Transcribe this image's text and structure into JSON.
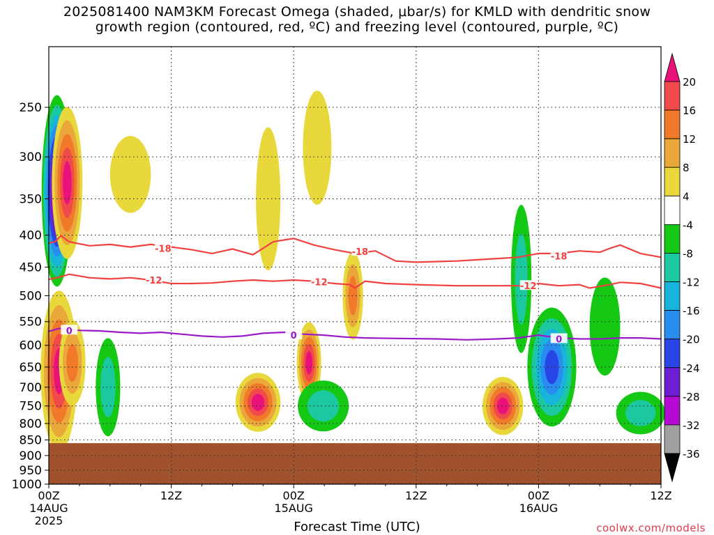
{
  "title_line1": "2025081400 NAM3KM Forecast Omega (shaded, μbar/s) for KMLD with dendritic snow",
  "title_line2": "growth region (contoured, red, ºC) and freezing level (contoured, purple, ºC)",
  "x_axis_title": "Forecast Time (UTC)",
  "credit": "coolwx.com/models",
  "chart_data": {
    "type": "heatmap",
    "y_axis": {
      "quantity": "pressure (hPa)",
      "scale": "log",
      "range": [
        200,
        1000
      ],
      "inverted": true,
      "ticks": [
        "250",
        "300",
        "350",
        "400",
        "450",
        "500",
        "550",
        "600",
        "650",
        "700",
        "750",
        "800",
        "850",
        "900",
        "950",
        "1000"
      ]
    },
    "x_axis": {
      "quantity": "forecast hour",
      "range": [
        0,
        60
      ],
      "ticks": [
        {
          "hour": 0,
          "label": "00Z",
          "sub1": "14AUG",
          "sub2": "2025"
        },
        {
          "hour": 12,
          "label": "12Z",
          "sub1": "",
          "sub2": ""
        },
        {
          "hour": 24,
          "label": "00Z",
          "sub1": "15AUG",
          "sub2": ""
        },
        {
          "hour": 36,
          "label": "12Z",
          "sub1": "",
          "sub2": ""
        },
        {
          "hour": 48,
          "label": "00Z",
          "sub1": "16AUG",
          "sub2": ""
        },
        {
          "hour": 60,
          "label": "12Z",
          "sub1": "",
          "sub2": ""
        }
      ]
    },
    "grid": true,
    "surface_fill": {
      "above_pressure": 860,
      "color": "#a0522d"
    },
    "colorbar": {
      "labels": [
        "20",
        "16",
        "12",
        "8",
        "4",
        "-4",
        "-8",
        "-12",
        "-16",
        "-20",
        "-24",
        "-28",
        "-32",
        "-36"
      ],
      "bins": [
        {
          "range": [
            20,
            24
          ],
          "color": "#e8127a"
        },
        {
          "range": [
            16,
            20
          ],
          "color": "#f04a4a"
        },
        {
          "range": [
            12,
            16
          ],
          "color": "#f07a2a"
        },
        {
          "range": [
            8,
            12
          ],
          "color": "#eaa83a"
        },
        {
          "range": [
            4,
            8
          ],
          "color": "#e8d83c"
        },
        {
          "range": [
            -4,
            4
          ],
          "color": "#ffffff"
        },
        {
          "range": [
            -8,
            -4
          ],
          "color": "#14c814"
        },
        {
          "range": [
            -12,
            -8
          ],
          "color": "#1cc8a0"
        },
        {
          "range": [
            -16,
            -12
          ],
          "color": "#18b4dc"
        },
        {
          "range": [
            -20,
            -16
          ],
          "color": "#288cf0"
        },
        {
          "range": [
            -24,
            -20
          ],
          "color": "#2846e6"
        },
        {
          "range": [
            -28,
            -24
          ],
          "color": "#6e1ed2"
        },
        {
          "range": [
            -32,
            -28
          ],
          "color": "#b40ad2"
        },
        {
          "range": [
            -36,
            -32
          ],
          "color": "#a0a0a0"
        },
        {
          "range": [
            -40,
            -36
          ],
          "color": "#000000"
        }
      ]
    },
    "contours": [
      {
        "label": "-18",
        "color": "#f04040",
        "label_hours": [
          [
            11.2,
            420
          ],
          [
            30.5,
            425
          ],
          [
            50,
            432
          ]
        ],
        "points": [
          [
            0,
            412
          ],
          [
            0.6,
            410
          ],
          [
            1.2,
            401
          ],
          [
            2,
            410
          ],
          [
            4,
            416
          ],
          [
            6,
            414
          ],
          [
            8,
            418
          ],
          [
            10,
            414
          ],
          [
            12,
            418
          ],
          [
            14,
            422
          ],
          [
            16,
            428
          ],
          [
            18,
            421
          ],
          [
            20,
            430
          ],
          [
            22,
            410
          ],
          [
            24,
            405
          ],
          [
            26,
            415
          ],
          [
            28,
            422
          ],
          [
            30,
            428
          ],
          [
            32,
            424
          ],
          [
            34,
            440
          ],
          [
            36,
            442
          ],
          [
            38,
            441
          ],
          [
            40,
            440
          ],
          [
            42,
            438
          ],
          [
            44,
            436
          ],
          [
            46,
            434
          ],
          [
            48,
            428
          ],
          [
            50,
            428
          ],
          [
            52,
            424
          ],
          [
            54,
            426
          ],
          [
            55,
            420
          ],
          [
            56,
            415
          ],
          [
            58,
            428
          ],
          [
            60,
            434
          ]
        ]
      },
      {
        "label": "-12",
        "color": "#f04040",
        "label_hours": [
          [
            10.3,
            472
          ],
          [
            26.5,
            475
          ],
          [
            47,
            482
          ]
        ],
        "points": [
          [
            0,
            471
          ],
          [
            1,
            467
          ],
          [
            2,
            462
          ],
          [
            4,
            468
          ],
          [
            6,
            470
          ],
          [
            8,
            468
          ],
          [
            10,
            472
          ],
          [
            12,
            478
          ],
          [
            14,
            478
          ],
          [
            16,
            477
          ],
          [
            18,
            474
          ],
          [
            20,
            472
          ],
          [
            22,
            474
          ],
          [
            24,
            472
          ],
          [
            26,
            474
          ],
          [
            28,
            478
          ],
          [
            29.5,
            480
          ],
          [
            30,
            486
          ],
          [
            31,
            474
          ],
          [
            33,
            478
          ],
          [
            36,
            480
          ],
          [
            40,
            482
          ],
          [
            44,
            482
          ],
          [
            46,
            482
          ],
          [
            48,
            478
          ],
          [
            50,
            482
          ],
          [
            52,
            480
          ],
          [
            53,
            486
          ],
          [
            55,
            480
          ],
          [
            56,
            476
          ],
          [
            58,
            478
          ],
          [
            60,
            486
          ]
        ]
      },
      {
        "label": "0",
        "color": "#9a19c8",
        "label_hours": [
          [
            2,
            568
          ],
          [
            24,
            578
          ],
          [
            50,
            586
          ]
        ],
        "points": [
          [
            0,
            570
          ],
          [
            1,
            564
          ],
          [
            3,
            568
          ],
          [
            5,
            569
          ],
          [
            7,
            572
          ],
          [
            9,
            574
          ],
          [
            11,
            572
          ],
          [
            13,
            576
          ],
          [
            15,
            580
          ],
          [
            17,
            582
          ],
          [
            19,
            580
          ],
          [
            21,
            574
          ],
          [
            23,
            572
          ],
          [
            25,
            576
          ],
          [
            27,
            578
          ],
          [
            29,
            582
          ],
          [
            31,
            584
          ],
          [
            34,
            585
          ],
          [
            38,
            586
          ],
          [
            41,
            588
          ],
          [
            44,
            586
          ],
          [
            46,
            584
          ],
          [
            48,
            578
          ],
          [
            50,
            584
          ],
          [
            52,
            586
          ],
          [
            54,
            586
          ],
          [
            56,
            584
          ],
          [
            58,
            584
          ],
          [
            60,
            586
          ]
        ]
      }
    ],
    "cells": [
      {
        "hour": 0.8,
        "p": 340,
        "dh": 1.5,
        "dp": 230,
        "value": -40
      },
      {
        "hour": 1.8,
        "p": 330,
        "dh": 1.5,
        "dp": 180,
        "value": 20
      },
      {
        "hour": 1.0,
        "p": 660,
        "dh": 1.8,
        "dp": 380,
        "value": 20
      },
      {
        "hour": 2.3,
        "p": 640,
        "dh": 1.3,
        "dp": 200,
        "value": 12
      },
      {
        "hour": 5.8,
        "p": 700,
        "dh": 1.2,
        "dp": 250,
        "value": -12
      },
      {
        "hour": 8.0,
        "p": 320,
        "dh": 2.0,
        "dp": 90,
        "value": 4
      },
      {
        "hour": 9.7,
        "p": 570,
        "dh": 2.5,
        "dp": 180,
        "value": -4
      },
      {
        "hour": 13.8,
        "p": 560,
        "dh": 1.8,
        "dp": 150,
        "value": -4
      },
      {
        "hour": 20.5,
        "p": 740,
        "dh": 2.2,
        "dp": 160,
        "value": 20
      },
      {
        "hour": 21.5,
        "p": 350,
        "dh": 1.2,
        "dp": 180,
        "value": 4
      },
      {
        "hour": 25.5,
        "p": 640,
        "dh": 1.2,
        "dp": 190,
        "value": 20
      },
      {
        "hour": 26.3,
        "p": 290,
        "dh": 1.4,
        "dp": 120,
        "value": 4
      },
      {
        "hour": 26.9,
        "p": 750,
        "dh": 2.5,
        "dp": 140,
        "value": -12
      },
      {
        "hour": 29.8,
        "p": 500,
        "dh": 1.0,
        "dp": 160,
        "value": 12
      },
      {
        "hour": 34.3,
        "p": 680,
        "dh": 2.0,
        "dp": 130,
        "value": -4
      },
      {
        "hour": 39.0,
        "p": 580,
        "dh": 1.6,
        "dp": 230,
        "value": -4
      },
      {
        "hour": 44.5,
        "p": 750,
        "dh": 2.0,
        "dp": 160,
        "value": 20
      },
      {
        "hour": 46.3,
        "p": 470,
        "dh": 1.0,
        "dp": 250,
        "value": -12
      },
      {
        "hour": 49.3,
        "p": 650,
        "dh": 2.4,
        "dp": 280,
        "value": -24
      },
      {
        "hour": 54.5,
        "p": 560,
        "dh": 1.5,
        "dp": 200,
        "value": -8
      },
      {
        "hour": 58.0,
        "p": 770,
        "dh": 2.4,
        "dp": 120,
        "value": -12
      }
    ]
  }
}
